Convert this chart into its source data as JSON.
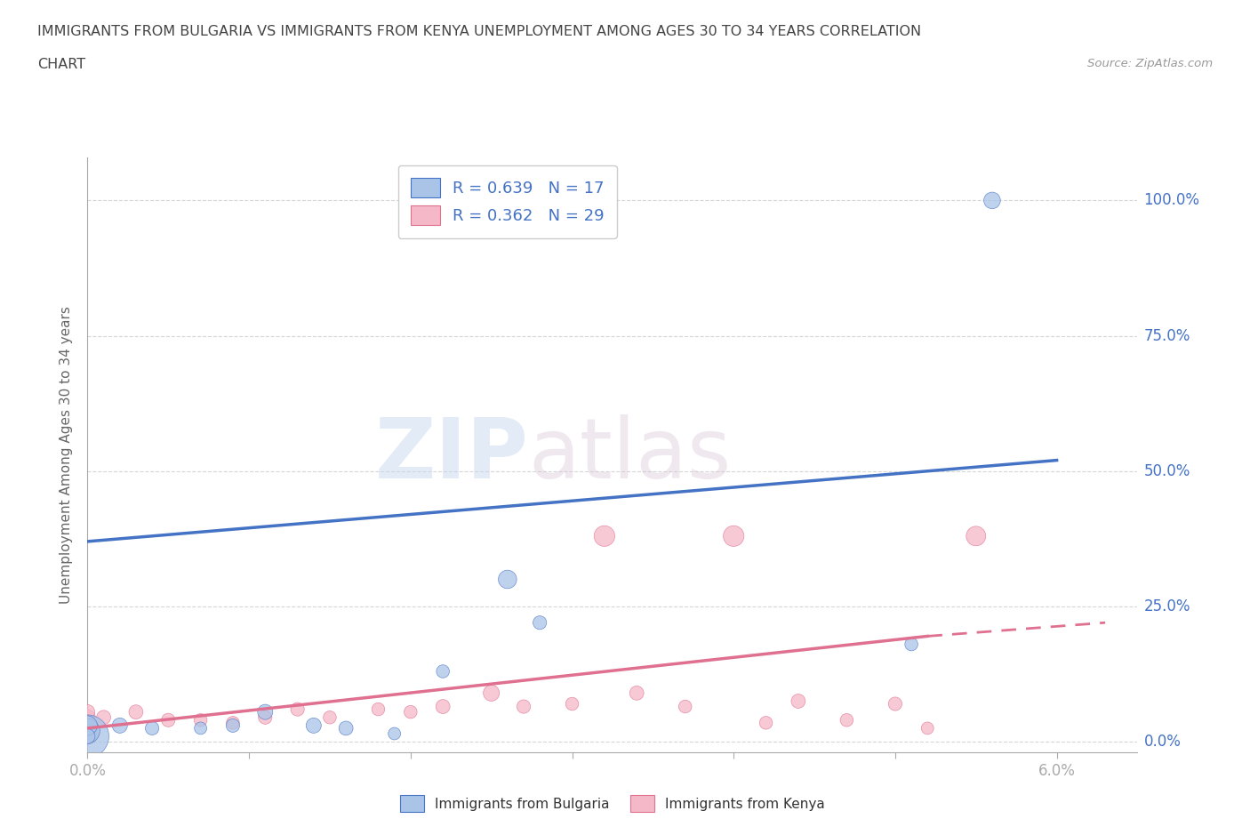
{
  "title_line1": "IMMIGRANTS FROM BULGARIA VS IMMIGRANTS FROM KENYA UNEMPLOYMENT AMONG AGES 30 TO 34 YEARS CORRELATION",
  "title_line2": "CHART",
  "source_text": "Source: ZipAtlas.com",
  "ylabel": "Unemployment Among Ages 30 to 34 years",
  "xlim": [
    0.0,
    0.065
  ],
  "ylim": [
    -0.02,
    1.08
  ],
  "yticks": [
    0.0,
    0.25,
    0.5,
    0.75,
    1.0
  ],
  "yticklabels": [
    "0.0%",
    "25.0%",
    "50.0%",
    "75.0%",
    "100.0%"
  ],
  "xtick_positions": [
    0.0,
    0.01,
    0.02,
    0.03,
    0.04,
    0.05,
    0.06
  ],
  "xticklabels": [
    "0.0%",
    "",
    "",
    "",
    "",
    "",
    "6.0%"
  ],
  "watermark_zip": "ZIP",
  "watermark_atlas": "atlas",
  "legend1_label": "R = 0.639   N = 17",
  "legend2_label": "R = 0.362   N = 29",
  "bulgaria_color": "#aac4e8",
  "kenya_color": "#f5b8c8",
  "line_bulgaria_color": "#4472c4",
  "line_kenya_color": "#e07090",
  "bulgaria_x": [
    0.0,
    0.0,
    0.0,
    0.0,
    0.002,
    0.004,
    0.007,
    0.009,
    0.011,
    0.014,
    0.016,
    0.019,
    0.022,
    0.026,
    0.028,
    0.051,
    0.056
  ],
  "bulgaria_y": [
    0.01,
    0.02,
    0.03,
    0.01,
    0.03,
    0.025,
    0.025,
    0.03,
    0.055,
    0.03,
    0.025,
    0.015,
    0.13,
    0.3,
    0.22,
    0.18,
    1.0
  ],
  "bulgaria_size": [
    1200,
    400,
    250,
    150,
    150,
    120,
    100,
    120,
    150,
    150,
    130,
    100,
    110,
    220,
    120,
    110,
    180
  ],
  "kenya_x": [
    0.0,
    0.0,
    0.0,
    0.0,
    0.0,
    0.001,
    0.003,
    0.005,
    0.007,
    0.009,
    0.011,
    0.013,
    0.015,
    0.018,
    0.02,
    0.022,
    0.025,
    0.027,
    0.03,
    0.032,
    0.034,
    0.037,
    0.04,
    0.042,
    0.044,
    0.047,
    0.05,
    0.052,
    0.055
  ],
  "kenya_y": [
    0.015,
    0.025,
    0.035,
    0.045,
    0.055,
    0.045,
    0.055,
    0.04,
    0.04,
    0.035,
    0.045,
    0.06,
    0.045,
    0.06,
    0.055,
    0.065,
    0.09,
    0.065,
    0.07,
    0.38,
    0.09,
    0.065,
    0.38,
    0.035,
    0.075,
    0.04,
    0.07,
    0.025,
    0.38
  ],
  "kenya_size": [
    300,
    200,
    180,
    160,
    140,
    130,
    130,
    120,
    110,
    110,
    120,
    120,
    110,
    110,
    110,
    130,
    170,
    120,
    110,
    280,
    130,
    110,
    280,
    110,
    130,
    110,
    120,
    100,
    250
  ],
  "bg_color": "#ffffff",
  "grid_color": "#cccccc",
  "axis_color": "#aaaaaa",
  "tick_label_color": "#4472c4",
  "title_color": "#444444",
  "line_bul_x0": 0.0,
  "line_bul_y0": 0.37,
  "line_bul_x1": 0.06,
  "line_bul_y1": 0.52,
  "line_ken_x0": 0.0,
  "line_ken_y0": 0.025,
  "line_ken_x1": 0.052,
  "line_ken_y1": 0.195,
  "line_ken_dash_x0": 0.052,
  "line_ken_dash_y0": 0.195,
  "line_ken_dash_x1": 0.063,
  "line_ken_dash_y1": 0.22
}
